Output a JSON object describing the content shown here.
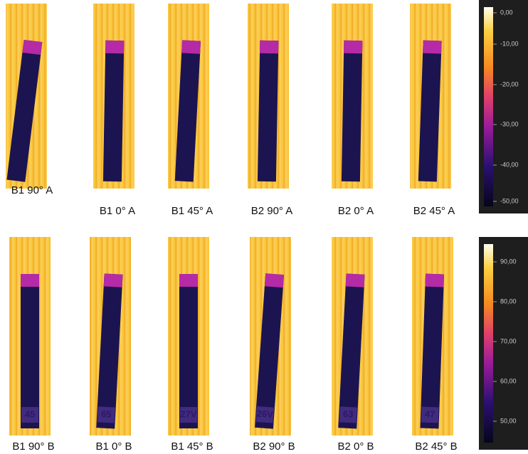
{
  "rows": [
    {
      "panels": [
        {
          "label": "B1 90° A"
        },
        {
          "label": "B1 0° A"
        },
        {
          "label": "B1 45° A"
        },
        {
          "label": "B2 90° A"
        },
        {
          "label": "B2 0° A"
        },
        {
          "label": "B2 45° A"
        }
      ],
      "colorbar": {
        "ticks": [
          "0,00",
          "-10,00",
          "-20,00",
          "-30,00",
          "-40,00",
          "-50,00"
        ]
      }
    },
    {
      "panels": [
        {
          "label": "B1 90° B",
          "marker": "45"
        },
        {
          "label": "B1 0° B",
          "marker": "65"
        },
        {
          "label": "B1 45° B",
          "marker": "27V"
        },
        {
          "label": "B2 90° B",
          "marker": "26V"
        },
        {
          "label": "B2 0° B",
          "marker": "63"
        },
        {
          "label": "B2 45° B",
          "marker": "47"
        }
      ],
      "colorbar": {
        "ticks": [
          "90,00",
          "80,00",
          "70,00",
          "60,00",
          "50,00"
        ]
      }
    }
  ]
}
